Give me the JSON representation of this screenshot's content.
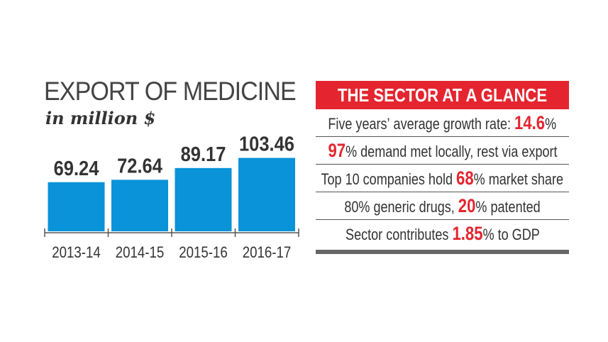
{
  "chart_data": {
    "type": "bar",
    "title": "EXPORT OF MEDICINE",
    "subtitle": "in million $",
    "categories": [
      "2013-14",
      "2014-15",
      "2015-16",
      "2016-17"
    ],
    "values": [
      69.24,
      72.64,
      89.17,
      103.46
    ],
    "value_labels": [
      "69.24",
      "72.64",
      "89.17",
      "103.46"
    ],
    "bar_color": "#0a93d8",
    "ylim": [
      0,
      110
    ],
    "grid": false
  },
  "panel": {
    "title": "THE SECTOR AT A GLANCE",
    "header_color": "#e4252f",
    "rows": [
      {
        "segments": [
          {
            "text": "Five years’ average growth rate: ",
            "hl": false
          },
          {
            "text": "14.6",
            "hl": true
          },
          {
            "text": "%",
            "hl": false
          }
        ]
      },
      {
        "segments": [
          {
            "text": "97",
            "hl": true
          },
          {
            "text": "% demand met locally, rest via export",
            "hl": false
          }
        ]
      },
      {
        "segments": [
          {
            "text": "Top 10 companies hold ",
            "hl": false
          },
          {
            "text": "68",
            "hl": true
          },
          {
            "text": "% market share",
            "hl": false
          }
        ]
      },
      {
        "segments": [
          {
            "text": "80% generic drugs, ",
            "hl": false
          },
          {
            "text": "20",
            "hl": true
          },
          {
            "text": "% patented",
            "hl": false
          }
        ]
      },
      {
        "segments": [
          {
            "text": "Sector contributes ",
            "hl": false
          },
          {
            "text": "1.85",
            "hl": true
          },
          {
            "text": "% to GDP",
            "hl": false
          }
        ]
      }
    ]
  }
}
